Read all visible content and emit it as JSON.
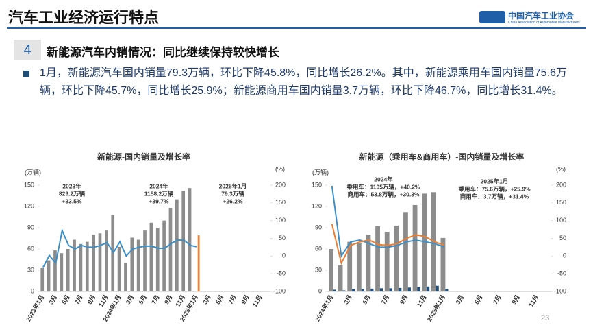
{
  "header": {
    "title": "汽车工业经济运行特点",
    "logo_name": "中国汽车工业协会",
    "logo_subtitle": "China Association of Automobile Manufacturers"
  },
  "section": {
    "number": "4",
    "heading": "新能源汽车内销情况：同比继续保持较快增长"
  },
  "bullet": "1月，新能源汽车国内销量79.3万辆，环比下降45.8%，同比增长26.2%。其中，新能源乘用车国内销量75.6万辆，环比下降45.7%，同比增长25.9%；新能源商用车国内销量3.7万辆，环比下降46.7%，同比增长31.4%。",
  "page_number": "23",
  "chart_data": [
    {
      "type": "combo",
      "title": "新能源-国内销量及增长率",
      "ylabel": "(万辆)",
      "y2label": "(%)",
      "categories": [
        "2023年1月",
        null,
        "3月",
        null,
        "5月",
        null,
        "7月",
        null,
        "9月",
        null,
        "11月",
        null,
        "2024年1月",
        null,
        "3月",
        null,
        "5月",
        null,
        "7月",
        null,
        "9月",
        null,
        "11月",
        null,
        "2025年1月",
        null,
        "3月",
        null,
        "5月",
        null,
        "7月",
        null,
        "9月",
        null,
        "11月",
        null
      ],
      "ylim": [
        0,
        150
      ],
      "yticks": [
        0,
        30,
        60,
        90,
        120,
        150
      ],
      "y2lim": [
        -100,
        200
      ],
      "y2ticks": [
        -100,
        -50,
        0,
        50,
        100,
        150,
        200
      ],
      "grid": false,
      "series": [
        {
          "type": "bar",
          "color": "#8c8c8c",
          "values": [
            33,
            44,
            58,
            54,
            60,
            73,
            67,
            70,
            80,
            82,
            86,
            108,
            63,
            40,
            76,
            73,
            86,
            97,
            90,
            100,
            118,
            130,
            142,
            146,
            null,
            null,
            null,
            null,
            null,
            null,
            null,
            null,
            null,
            null,
            null,
            null
          ]
        },
        {
          "type": "bar",
          "color": "#ed7d31",
          "values": [
            null,
            null,
            null,
            null,
            null,
            null,
            null,
            null,
            null,
            null,
            null,
            null,
            null,
            null,
            null,
            null,
            null,
            null,
            null,
            null,
            null,
            null,
            null,
            null,
            79.3,
            null,
            null,
            null,
            null,
            null,
            null,
            null,
            null,
            null,
            null,
            null
          ]
        },
        {
          "type": "line",
          "axis": "y2",
          "color": "#3b8fc8",
          "values": [
            -33,
            2,
            -20,
            72,
            30,
            20,
            30,
            25,
            25,
            30,
            38,
            10,
            40,
            0,
            20,
            25,
            28,
            28,
            22,
            22,
            35,
            45,
            45,
            30,
            26.2,
            null,
            null,
            null,
            null,
            null,
            null,
            null,
            null,
            null,
            null,
            null
          ]
        }
      ],
      "annotations": [
        [
          "2023年",
          "829.2万辆",
          "+33.5%"
        ],
        [
          "2024年",
          "1158.2万辆",
          "+39.7%"
        ],
        [
          "2025年1月",
          "79.3万辆",
          "+26.2%"
        ]
      ]
    },
    {
      "type": "combo",
      "title": "新能源（乘用车&商用车）-国内销量及增长率",
      "ylabel": "(万辆)",
      "y2label": "(%)",
      "categories": [
        "2024年1月",
        null,
        "3月",
        null,
        "5月",
        null,
        "7月",
        null,
        "9月",
        null,
        "11月",
        null,
        "2025年1月",
        null,
        "3月",
        null,
        "5月",
        null,
        "7月",
        null,
        "9月",
        null,
        "11月",
        null
      ],
      "ylim": [
        0,
        150
      ],
      "yticks": [
        0,
        30,
        60,
        90,
        120,
        150
      ],
      "y2lim": [
        -100,
        200
      ],
      "y2ticks": [
        -100,
        -50,
        0,
        50,
        100,
        150,
        200
      ],
      "grid": false,
      "series": [
        {
          "type": "bar",
          "color": "#8c8c8c",
          "values": [
            60,
            37,
            70,
            68,
            80,
            92,
            84,
            93,
            112,
            122,
            138,
            140,
            75.6,
            null,
            null,
            null,
            null,
            null,
            null,
            null,
            null,
            null,
            null,
            null
          ]
        },
        {
          "type": "bar",
          "color": "#1f4e79",
          "values": [
            2.5,
            1.5,
            3.6,
            3.5,
            4,
            4.5,
            4.5,
            5,
            5.5,
            6,
            7,
            8,
            3.7,
            null,
            null,
            null,
            null,
            null,
            null,
            null,
            null,
            null,
            null,
            null
          ]
        },
        {
          "type": "line",
          "axis": "y2",
          "color": "#3b8fc8",
          "values": [
            198,
            0,
            40,
            45,
            35,
            25,
            25,
            30,
            40,
            45,
            40,
            35,
            25.9,
            null,
            null,
            null,
            null,
            null,
            null,
            null,
            null,
            null,
            null,
            null
          ]
        },
        {
          "type": "line",
          "axis": "y2",
          "color": "#ed7d31",
          "values": [
            90,
            -20,
            30,
            40,
            45,
            32,
            30,
            35,
            50,
            60,
            55,
            40,
            31.4,
            null,
            null,
            null,
            null,
            null,
            null,
            null,
            null,
            null,
            null,
            null
          ]
        }
      ],
      "annotations": [
        [
          "2024年",
          "乘用车：1105万辆，+40.2%",
          "商用车：53.8万辆，+30.3%"
        ],
        [
          "2025年1月",
          "乘用车：75.6万辆，+25.9%",
          "商用车：3.7万辆，+31.4%"
        ]
      ]
    }
  ]
}
